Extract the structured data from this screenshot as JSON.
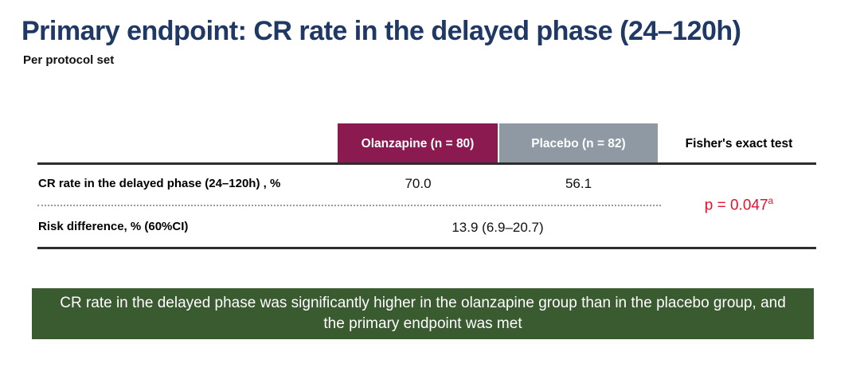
{
  "header": {
    "title": "Primary endpoint: CR rate in the delayed phase (24–120h)",
    "subtitle": "Per protocol set",
    "title_color": "#1f3864"
  },
  "table": {
    "columns": [
      {
        "label": "Olanzapine (n = 80)",
        "bg": "#8a1a4f",
        "text_color": "#ffffff"
      },
      {
        "label": "Placebo (n = 82)",
        "bg": "#8e99a4",
        "text_color": "#ffffff"
      },
      {
        "label": "Fisher's exact test",
        "bg": "none",
        "text_color": "#000000"
      }
    ],
    "rows": [
      {
        "label": "CR rate in the delayed phase (24–120h) , %",
        "olanzapine": "70.0",
        "placebo": "56.1"
      },
      {
        "label": "Risk difference, % (60%CI)",
        "combined": "13.9 (6.9–20.7)"
      }
    ],
    "fisher": {
      "p_text": "p = 0.047",
      "superscript": "a",
      "color": "#e8112d"
    }
  },
  "conclusion": {
    "text": "CR rate in the delayed phase was significantly higher in the olanzapine group than in the placebo group, and the primary endpoint was met",
    "bg": "#3a5a30",
    "text_color": "#ffffff"
  }
}
